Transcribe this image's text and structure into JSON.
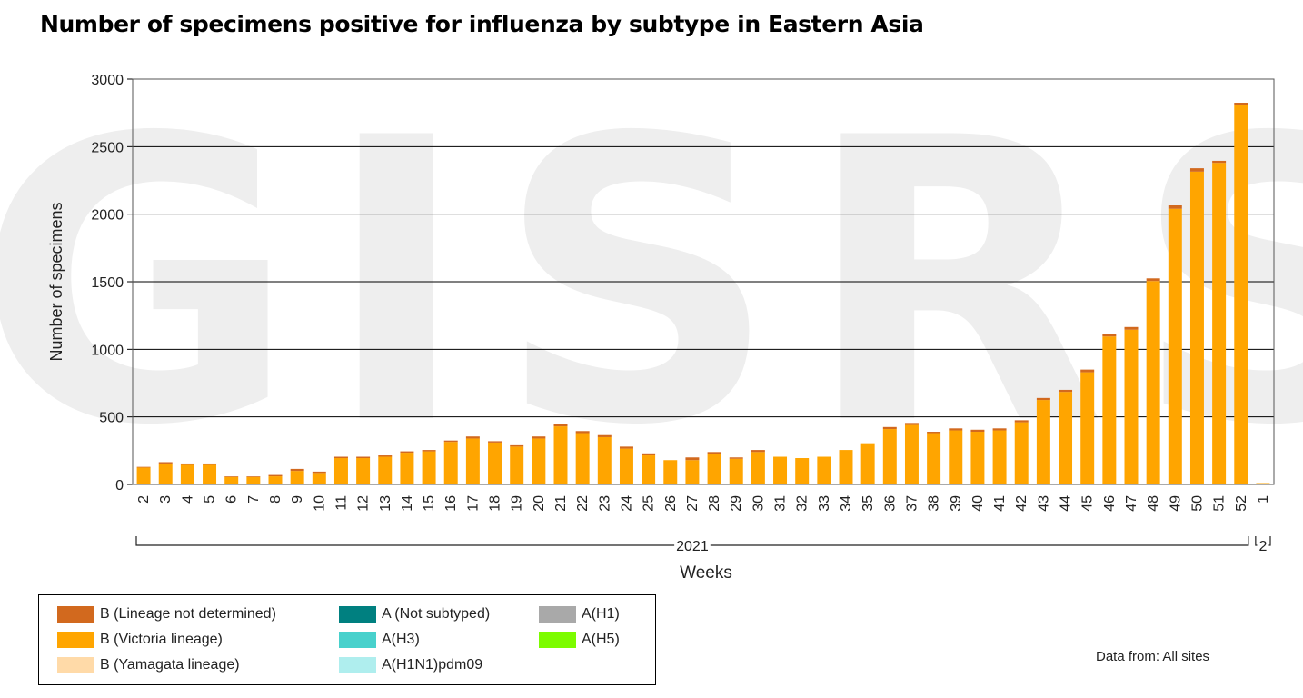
{
  "title": "Number of specimens positive for influenza by subtype in Eastern Asia",
  "source_note": "Data from: All sites",
  "watermark": "GISRS",
  "legend": [
    {
      "label": "B (Lineage not determined)",
      "color": "#D2691E"
    },
    {
      "label": "A (Not subtyped)",
      "color": "#008080"
    },
    {
      "label": "A(H1)",
      "color": "#A9A9A9"
    },
    {
      "label": "B (Victoria lineage)",
      "color": "#FFA500"
    },
    {
      "label": "A(H3)",
      "color": "#48D1CC"
    },
    {
      "label": "A(H5)",
      "color": "#7CFC00"
    },
    {
      "label": "B (Yamagata lineage)",
      "color": "#FFDAA8"
    },
    {
      "label": "A(H1N1)pdm09",
      "color": "#AFEEEE"
    }
  ],
  "chart_data": {
    "type": "bar",
    "stacked": true,
    "title": "Number of specimens positive for influenza by subtype in Eastern Asia",
    "xlabel": "Weeks",
    "ylabel": "Number of specimens",
    "ylim": [
      0,
      3000
    ],
    "yticks": [
      0,
      500,
      1000,
      1500,
      2000,
      2500,
      3000
    ],
    "grid": true,
    "legend_position": "bottom-left",
    "year_groups": [
      {
        "label": "2021",
        "from": "2",
        "to": "52"
      },
      {
        "label": "2",
        "from": "1",
        "to": "1"
      }
    ],
    "categories": [
      "2",
      "3",
      "4",
      "5",
      "6",
      "7",
      "8",
      "9",
      "10",
      "11",
      "12",
      "13",
      "14",
      "15",
      "16",
      "17",
      "18",
      "19",
      "20",
      "21",
      "22",
      "23",
      "24",
      "25",
      "26",
      "27",
      "28",
      "29",
      "30",
      "31",
      "32",
      "33",
      "34",
      "35",
      "36",
      "37",
      "38",
      "39",
      "40",
      "41",
      "42",
      "43",
      "44",
      "45",
      "46",
      "47",
      "48",
      "49",
      "50",
      "51",
      "52",
      "1"
    ],
    "series": [
      {
        "name": "B (Victoria lineage)",
        "color": "#FFA500",
        "values": [
          125,
          155,
          145,
          145,
          55,
          55,
          60,
          100,
          85,
          195,
          195,
          205,
          235,
          245,
          315,
          340,
          310,
          280,
          340,
          430,
          380,
          350,
          265,
          215,
          180,
          180,
          225,
          190,
          240,
          205,
          195,
          205,
          255,
          305,
          410,
          440,
          380,
          400,
          390,
          400,
          460,
          625,
          685,
          830,
          1095,
          1145,
          1505,
          2040,
          2315,
          2380,
          2805,
          10
        ]
      },
      {
        "name": "B (Lineage not determined)",
        "color": "#D2691E",
        "values": [
          5,
          10,
          10,
          10,
          5,
          5,
          10,
          15,
          10,
          10,
          10,
          10,
          10,
          10,
          10,
          15,
          10,
          10,
          15,
          15,
          15,
          15,
          15,
          15,
          0,
          20,
          15,
          10,
          15,
          0,
          0,
          0,
          0,
          0,
          15,
          15,
          10,
          15,
          15,
          15,
          15,
          15,
          15,
          20,
          20,
          20,
          20,
          25,
          25,
          15,
          20,
          0
        ]
      }
    ]
  }
}
